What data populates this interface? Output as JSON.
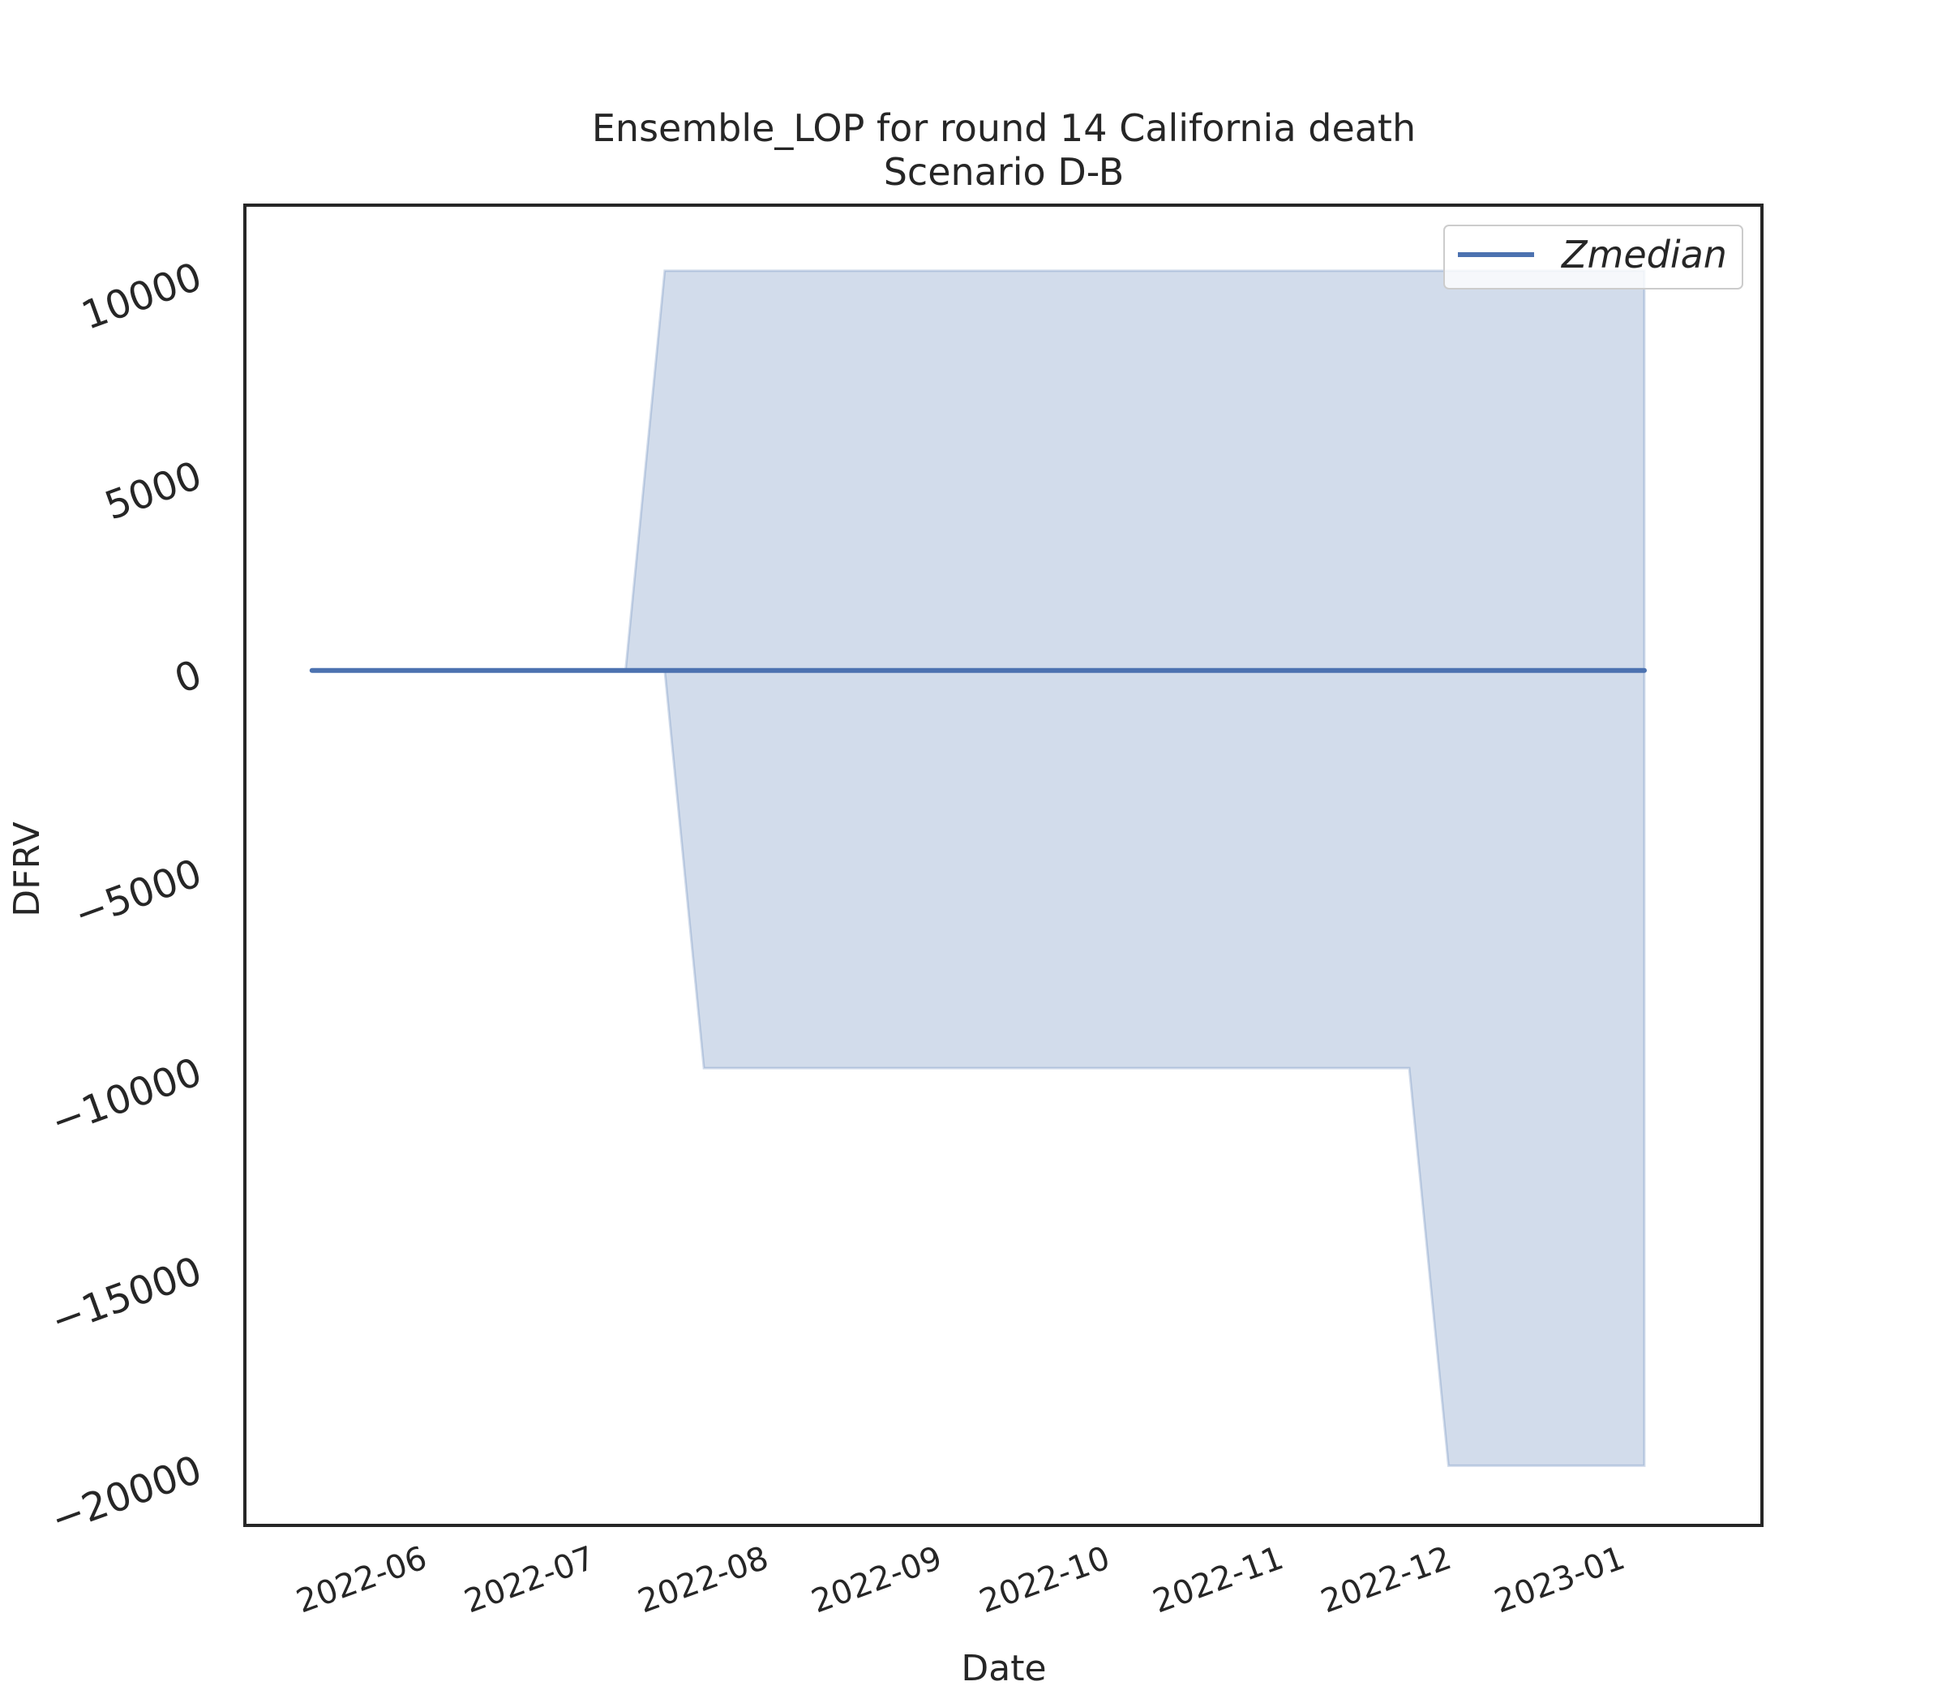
{
  "chart_data": {
    "type": "area",
    "title": "Ensemble_LOP for round 14 California death",
    "subtitle": "Scenario D-B",
    "xlabel": "Date",
    "ylabel": "DFRV",
    "x_tick_labels": [
      "2022-06",
      "2022-07",
      "2022-08",
      "2022-09",
      "2022-10",
      "2022-11",
      "2022-12",
      "2023-01"
    ],
    "x_tick_dates": [
      "2022-06-01",
      "2022-07-01",
      "2022-08-01",
      "2022-09-01",
      "2022-10-01",
      "2022-11-01",
      "2022-12-01",
      "2023-01-01"
    ],
    "xlim": [
      "2022-05-02",
      "2023-01-28"
    ],
    "y_tick_labels": [
      "10000",
      "5000",
      "0",
      "−5000",
      "−10000",
      "−15000",
      "−20000"
    ],
    "y_ticks": [
      10000,
      5000,
      0,
      -5000,
      -10000,
      -15000,
      -20000
    ],
    "ylim": [
      -21500,
      11700
    ],
    "grid": false,
    "legend_position": "top-right",
    "legend": [
      "Zmedian"
    ],
    "series": [
      {
        "name": "Zmedian",
        "x": [
          "2022-05-14",
          "2022-07-09",
          "2022-07-16",
          "2022-07-23",
          "2022-11-26",
          "2022-12-03",
          "2023-01-07"
        ],
        "values": [
          0,
          0,
          0,
          0,
          0,
          0,
          0
        ],
        "color": "#4c72b0"
      }
    ],
    "band": {
      "x": [
        "2022-05-14",
        "2022-07-09",
        "2022-07-16",
        "2022-07-23",
        "2022-11-26",
        "2022-12-03",
        "2023-01-07"
      ],
      "upper": [
        0,
        0,
        10050,
        10050,
        10050,
        10050,
        10050
      ],
      "lower": [
        0,
        0,
        0,
        -10000,
        -10000,
        -20000,
        -20000
      ],
      "color": "#4c72b0"
    }
  }
}
